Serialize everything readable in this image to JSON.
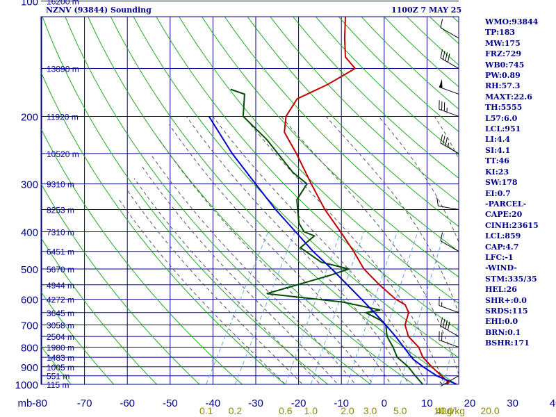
{
  "title": "NZNV (93844) Sounding",
  "time": "1100Z  7 MAY 25",
  "indices": [
    "WMO:93844",
    "TP:183",
    "MW:175",
    "FRZ:729",
    "WB0:745",
    "PW:0.89",
    "RH:57.3",
    "MAXT:22.6",
    "TH:5555",
    "L57:6.0",
    "LCL:951",
    "LI:4.4",
    "SI:4.1",
    "TT:46",
    "KI:23",
    "SW:178",
    "EI:0.7",
    "-PARCEL-",
    "CAPE:20",
    "CINH:23615",
    "LCL:859",
    "CAP:4.7",
    "LFC:-1",
    "-WIND-",
    "STM:335/35",
    "HEL:26",
    "SHR+:0.0",
    "SRDS:115",
    "EHI:0.0",
    "BRN:0.1",
    "BSHR:171"
  ],
  "colors": {
    "grid": "#00008b",
    "dry_adiabat": "#22a822",
    "moist_adiabat": "#555555",
    "mixing_ratio": "#6aa6e6",
    "temperature": "#c00000",
    "dewpoint": "#004d00",
    "parcel": "#0000cc",
    "text": "#00008b",
    "mixing_label": "#8b8b00"
  },
  "chart_data": {
    "type": "line",
    "subtype": "skew-t log-p sounding",
    "xaxis_label": "",
    "x_temp_ticks": [
      -80,
      -70,
      -60,
      -50,
      -40,
      -30,
      -20,
      -10,
      0,
      10,
      20,
      30,
      40
    ],
    "x_temp_tick_labels": [
      "mb-80",
      "-70",
      "-60",
      "-50",
      "-40",
      "-30",
      "-20",
      "-10",
      "0",
      "10",
      "20",
      "30",
      "40"
    ],
    "pressure_levels": [
      100,
      150,
      200,
      250,
      300,
      350,
      400,
      450,
      500,
      550,
      600,
      650,
      700,
      750,
      800,
      850,
      900,
      950,
      1000
    ],
    "pressure_labels": [
      {
        "p": 100,
        "text": "100"
      },
      {
        "p": 200,
        "text": "200"
      },
      {
        "p": 300,
        "text": "300"
      },
      {
        "p": 400,
        "text": "400"
      },
      {
        "p": 500,
        "text": "500"
      },
      {
        "p": 600,
        "text": "600"
      },
      {
        "p": 700,
        "text": "700"
      },
      {
        "p": 800,
        "text": "800"
      },
      {
        "p": 900,
        "text": "900"
      },
      {
        "p": 1000,
        "text": "1000"
      }
    ],
    "height_labels": [
      {
        "p": 100,
        "text": "16200 m"
      },
      {
        "p": 150,
        "text": "13890 m"
      },
      {
        "p": 200,
        "text": "11920 m"
      },
      {
        "p": 250,
        "text": "10520 m"
      },
      {
        "p": 300,
        "text": "9310 m"
      },
      {
        "p": 350,
        "text": "8253 m"
      },
      {
        "p": 400,
        "text": "7310 m"
      },
      {
        "p": 450,
        "text": "6451 m"
      },
      {
        "p": 500,
        "text": "5670 m"
      },
      {
        "p": 550,
        "text": "4944 m"
      },
      {
        "p": 600,
        "text": "4272 m"
      },
      {
        "p": 650,
        "text": "3645 m"
      },
      {
        "p": 700,
        "text": "3058 m"
      },
      {
        "p": 750,
        "text": "2504 m"
      },
      {
        "p": 800,
        "text": "1980 m"
      },
      {
        "p": 850,
        "text": "1483 m"
      },
      {
        "p": 900,
        "text": "1005 m"
      },
      {
        "p": 950,
        "text": "551 m"
      },
      {
        "p": 1000,
        "text": "115 m"
      }
    ],
    "mixing_ratio_labels": [
      {
        "value": 0.1,
        "text": "0.1"
      },
      {
        "value": 0.2,
        "text": "0.2"
      },
      {
        "value": 0.6,
        "text": "0.6"
      },
      {
        "value": 1.0,
        "text": "1.0"
      },
      {
        "value": 2.0,
        "text": "2.0"
      },
      {
        "value": 3.0,
        "text": "3.0"
      },
      {
        "value": 5.0,
        "text": "5.0"
      },
      {
        "value": 10.0,
        "text": "10.0"
      },
      {
        "value": 20.0,
        "text": "20.0"
      },
      {
        "value": 40.0,
        "text": "40g/kg"
      }
    ],
    "series": [
      {
        "key": "temperature",
        "points": [
          {
            "p": 1000,
            "t": 14.5
          },
          {
            "p": 990,
            "t": 14.8
          },
          {
            "p": 960,
            "t": 12.8
          },
          {
            "p": 900,
            "t": 8.5
          },
          {
            "p": 850,
            "t": 5.0
          },
          {
            "p": 800,
            "t": 2.5
          },
          {
            "p": 750,
            "t": -1.5
          },
          {
            "p": 700,
            "t": -4.0
          },
          {
            "p": 650,
            "t": -5.0
          },
          {
            "p": 620,
            "t": -7.0
          },
          {
            "p": 600,
            "t": -10.0
          },
          {
            "p": 550,
            "t": -16.0
          },
          {
            "p": 500,
            "t": -22.0
          },
          {
            "p": 450,
            "t": -27.0
          },
          {
            "p": 400,
            "t": -33.0
          },
          {
            "p": 350,
            "t": -40.0
          },
          {
            "p": 300,
            "t": -47.0
          },
          {
            "p": 250,
            "t": -55.0
          },
          {
            "p": 220,
            "t": -61.0
          },
          {
            "p": 200,
            "t": -63.0
          },
          {
            "p": 180,
            "t": -63.0
          },
          {
            "p": 165,
            "t": -58.0
          },
          {
            "p": 150,
            "t": -54.0
          },
          {
            "p": 140,
            "t": -58.0
          },
          {
            "p": 125,
            "t": -61.0
          },
          {
            "p": 110,
            "t": -64.0
          },
          {
            "p": 100,
            "t": -63.0
          }
        ]
      },
      {
        "key": "dewpoint",
        "points": [
          {
            "p": 1000,
            "t": 9.0
          },
          {
            "p": 950,
            "t": 6.0
          },
          {
            "p": 900,
            "t": 3.0
          },
          {
            "p": 850,
            "t": -1.0
          },
          {
            "p": 800,
            "t": -3.5
          },
          {
            "p": 750,
            "t": -6.5
          },
          {
            "p": 700,
            "t": -8.5
          },
          {
            "p": 680,
            "t": -10.5
          },
          {
            "p": 650,
            "t": -15.0
          },
          {
            "p": 640,
            "t": -12.0
          },
          {
            "p": 610,
            "t": -22.0
          },
          {
            "p": 580,
            "t": -41.0
          },
          {
            "p": 520,
            "t": -29.0
          },
          {
            "p": 500,
            "t": -25.5
          },
          {
            "p": 480,
            "t": -33.0
          },
          {
            "p": 440,
            "t": -40.0
          },
          {
            "p": 410,
            "t": -38.5
          },
          {
            "p": 400,
            "t": -41.5
          },
          {
            "p": 380,
            "t": -44.0
          },
          {
            "p": 330,
            "t": -48.0
          },
          {
            "p": 300,
            "t": -48.0
          },
          {
            "p": 280,
            "t": -53.0
          },
          {
            "p": 230,
            "t": -64.0
          },
          {
            "p": 200,
            "t": -73.0
          },
          {
            "p": 175,
            "t": -76.0
          },
          {
            "p": 170,
            "t": -80.0
          }
        ]
      },
      {
        "key": "parcel",
        "points": [
          {
            "p": 1000,
            "t": 17.0
          },
          {
            "p": 950,
            "t": 11.0
          },
          {
            "p": 900,
            "t": 6.5
          },
          {
            "p": 860,
            "t": 3.0
          },
          {
            "p": 800,
            "t": -1.0
          },
          {
            "p": 750,
            "t": -4.5
          },
          {
            "p": 700,
            "t": -8.5
          },
          {
            "p": 650,
            "t": -13.0
          },
          {
            "p": 600,
            "t": -18.0
          },
          {
            "p": 550,
            "t": -23.5
          },
          {
            "p": 500,
            "t": -29.5
          },
          {
            "p": 450,
            "t": -36.5
          },
          {
            "p": 400,
            "t": -43.5
          },
          {
            "p": 350,
            "t": -51.5
          },
          {
            "p": 300,
            "t": -60.0
          },
          {
            "p": 250,
            "t": -70.0
          },
          {
            "p": 200,
            "t": -81.0
          }
        ]
      }
    ],
    "wind_barbs": [
      {
        "p": 125,
        "dir": 300,
        "speed": 10
      },
      {
        "p": 150,
        "dir": 300,
        "speed": 40
      },
      {
        "p": 175,
        "dir": 290,
        "speed": 50
      },
      {
        "p": 200,
        "dir": 290,
        "speed": 35
      },
      {
        "p": 250,
        "dir": 300,
        "speed": 35
      },
      {
        "p": 350,
        "dir": 280,
        "speed": 10
      },
      {
        "p": 450,
        "dir": 300,
        "speed": 10
      },
      {
        "p": 650,
        "dir": 290,
        "speed": 15
      },
      {
        "p": 750,
        "dir": 300,
        "speed": 40
      },
      {
        "p": 800,
        "dir": 290,
        "speed": 20
      },
      {
        "p": 950,
        "dir": 240,
        "speed": 5
      }
    ]
  }
}
